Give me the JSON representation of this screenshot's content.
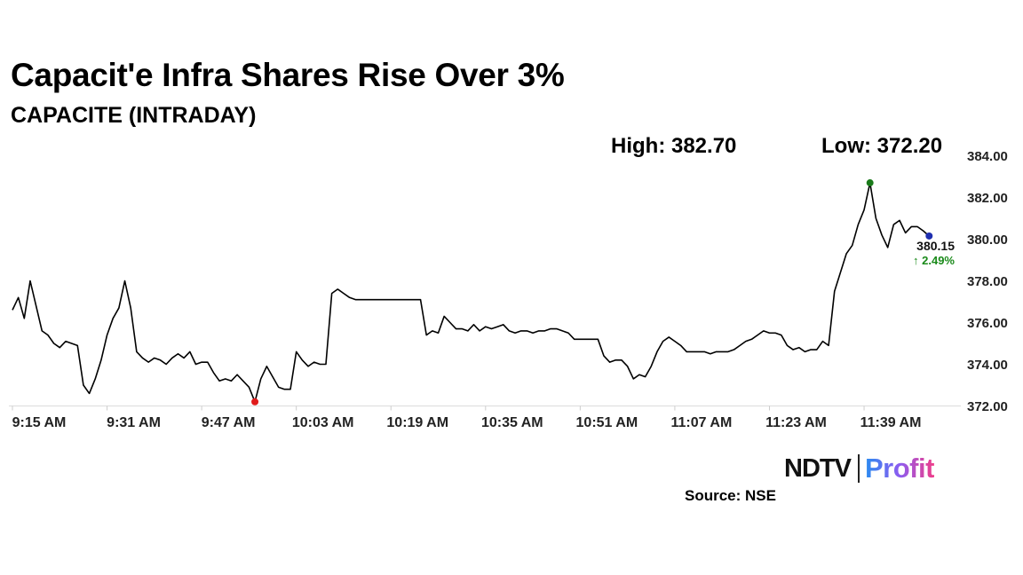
{
  "header": {
    "title": "Capacit'e Infra Shares Rise Over 3%",
    "subtitle": "CAPACITE (INTRADAY)",
    "high_text": "High: 382.70",
    "low_text": "Low: 372.20"
  },
  "footer": {
    "brand_ndtv": "NDTV",
    "brand_profit": "Profit",
    "source": "Source: NSE"
  },
  "chart_data": {
    "type": "line",
    "title": "CAPACITE (INTRADAY)",
    "xlabel": "",
    "ylabel": "",
    "x_ticks": [
      "9:15 AM",
      "9:31 AM",
      "9:47 AM",
      "10:03 AM",
      "10:19 AM",
      "10:35 AM",
      "10:51 AM",
      "11:07 AM",
      "11:23 AM",
      "11:39 AM"
    ],
    "y_ticks": [
      "372.00",
      "374.00",
      "376.00",
      "378.00",
      "380.00",
      "382.00",
      "384.00"
    ],
    "ylim": [
      372,
      384
    ],
    "grid": false,
    "high": 382.7,
    "low": 372.2,
    "last_value_label": "380.15",
    "change_label": "↑ 2.49%",
    "colors": {
      "line": "#000000",
      "high_marker": "#1a7a1a",
      "low_marker": "#e01b1b",
      "last_marker": "#1f2fb0",
      "change": "#1a8a1a"
    },
    "series": [
      {
        "x": [
          "9:15 AM",
          "9:16 AM",
          "9:17 AM",
          "9:18 AM",
          "9:19 AM",
          "9:20 AM",
          "9:21 AM",
          "9:22 AM",
          "9:23 AM",
          "9:24 AM",
          "9:25 AM",
          "9:26 AM",
          "9:27 AM",
          "9:28 AM",
          "9:29 AM",
          "9:30 AM",
          "9:31 AM",
          "9:32 AM",
          "9:33 AM",
          "9:34 AM",
          "9:35 AM",
          "9:36 AM",
          "9:37 AM",
          "9:38 AM",
          "9:39 AM",
          "9:40 AM",
          "9:41 AM",
          "9:42 AM",
          "9:43 AM",
          "9:44 AM",
          "9:45 AM",
          "9:46 AM",
          "9:47 AM",
          "9:48 AM",
          "9:49 AM",
          "9:50 AM",
          "9:51 AM",
          "9:52 AM",
          "9:53 AM",
          "9:54 AM",
          "9:55 AM",
          "9:56 AM",
          "9:57 AM",
          "9:58 AM",
          "9:59 AM",
          "10:00 AM",
          "10:01 AM",
          "10:02 AM",
          "10:03 AM",
          "10:04 AM",
          "10:05 AM",
          "10:06 AM",
          "10:07 AM",
          "10:08 AM",
          "10:09 AM",
          "10:10 AM",
          "10:11 AM",
          "10:12 AM",
          "10:13 AM",
          "10:14 AM",
          "10:15 AM",
          "10:16 AM",
          "10:17 AM",
          "10:18 AM",
          "10:19 AM",
          "10:20 AM",
          "10:21 AM",
          "10:22 AM",
          "10:23 AM",
          "10:24 AM",
          "10:25 AM",
          "10:26 AM",
          "10:27 AM",
          "10:28 AM",
          "10:29 AM",
          "10:30 AM",
          "10:31 AM",
          "10:32 AM",
          "10:33 AM",
          "10:34 AM",
          "10:35 AM",
          "10:36 AM",
          "10:37 AM",
          "10:38 AM",
          "10:39 AM",
          "10:40 AM",
          "10:41 AM",
          "10:42 AM",
          "10:43 AM",
          "10:44 AM",
          "10:45 AM",
          "10:46 AM",
          "10:47 AM",
          "10:48 AM",
          "10:49 AM",
          "10:50 AM",
          "10:51 AM",
          "10:52 AM",
          "10:53 AM",
          "10:54 AM",
          "10:55 AM",
          "10:56 AM",
          "10:57 AM",
          "10:58 AM",
          "10:59 AM",
          "11:00 AM",
          "11:01 AM",
          "11:02 AM",
          "11:03 AM",
          "11:04 AM",
          "11:05 AM",
          "11:06 AM",
          "11:07 AM",
          "11:08 AM",
          "11:09 AM",
          "11:10 AM",
          "11:11 AM",
          "11:12 AM",
          "11:13 AM",
          "11:14 AM",
          "11:15 AM",
          "11:16 AM",
          "11:17 AM",
          "11:18 AM",
          "11:19 AM",
          "11:20 AM",
          "11:21 AM",
          "11:22 AM",
          "11:23 AM",
          "11:24 AM",
          "11:25 AM",
          "11:26 AM",
          "11:27 AM",
          "11:28 AM",
          "11:29 AM",
          "11:30 AM",
          "11:31 AM",
          "11:32 AM",
          "11:33 AM",
          "11:34 AM",
          "11:35 AM",
          "11:36 AM",
          "11:37 AM",
          "11:38 AM",
          "11:39 AM",
          "11:40 AM",
          "11:41 AM",
          "11:42 AM",
          "11:43 AM",
          "11:44 AM",
          "11:45 AM",
          "11:46 AM",
          "11:47 AM",
          "11:48 AM",
          "11:49 AM",
          "11:50 AM"
        ],
        "values": [
          376.6,
          377.2,
          376.2,
          378.0,
          376.8,
          375.6,
          375.4,
          375.0,
          374.8,
          375.1,
          375.0,
          374.9,
          373.0,
          372.6,
          373.3,
          374.2,
          375.4,
          376.2,
          376.7,
          378.0,
          376.7,
          374.6,
          374.3,
          374.1,
          374.3,
          374.2,
          374.0,
          374.3,
          374.5,
          374.3,
          374.6,
          374.0,
          374.1,
          374.1,
          373.6,
          373.2,
          373.3,
          373.2,
          373.5,
          373.2,
          372.9,
          372.2,
          373.3,
          373.9,
          373.4,
          372.9,
          372.8,
          372.8,
          374.6,
          374.2,
          373.9,
          374.1,
          374.0,
          374.0,
          377.4,
          377.6,
          377.4,
          377.2,
          377.1,
          377.1,
          377.1,
          377.1,
          377.1,
          377.1,
          377.1,
          377.1,
          377.1,
          377.1,
          377.1,
          377.1,
          375.4,
          375.6,
          375.5,
          376.3,
          376.0,
          375.7,
          375.7,
          375.6,
          375.9,
          375.6,
          375.8,
          375.7,
          375.8,
          375.9,
          375.6,
          375.5,
          375.6,
          375.6,
          375.5,
          375.6,
          375.6,
          375.7,
          375.7,
          375.6,
          375.5,
          375.2,
          375.2,
          375.2,
          375.2,
          375.2,
          374.4,
          374.1,
          374.2,
          374.2,
          373.9,
          373.3,
          373.5,
          373.4,
          373.9,
          374.6,
          375.1,
          375.3,
          375.1,
          374.9,
          374.6,
          374.6,
          374.6,
          374.6,
          374.5,
          374.6,
          374.6,
          374.6,
          374.7,
          374.9,
          375.1,
          375.2,
          375.4,
          375.6,
          375.5,
          375.5,
          375.4,
          374.9,
          374.7,
          374.8,
          374.6,
          374.7,
          374.7,
          375.1,
          374.9,
          377.5,
          378.4,
          379.3,
          379.7,
          380.7,
          381.4,
          382.7,
          381.0,
          380.2,
          379.6,
          380.7,
          380.9,
          380.3,
          380.6,
          380.6,
          380.4,
          380.15
        ]
      }
    ]
  }
}
